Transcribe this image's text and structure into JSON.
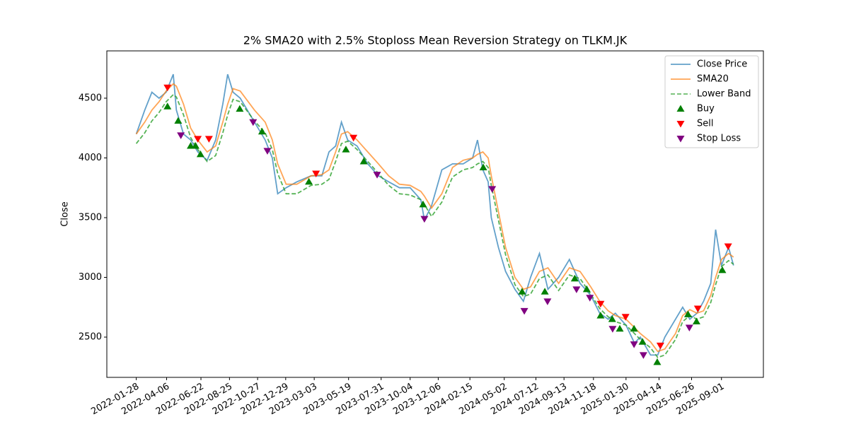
{
  "chart_data": {
    "type": "line",
    "title": "2% SMA20 with 2.5% Stoploss Mean Reversion Strategy on TLKM.JK",
    "ylabel": "Close",
    "legend": "upper right",
    "grid": false,
    "xlim": [
      "2021-11-23",
      "2025-12-04"
    ],
    "xticks": [
      "2022-01-28",
      "2022-04-06",
      "2022-06-22",
      "2022-08-25",
      "2022-10-27",
      "2022-12-29",
      "2023-03-03",
      "2023-05-19",
      "2023-07-31",
      "2023-10-04",
      "2023-12-06",
      "2024-02-15",
      "2024-05-02",
      "2024-07-12",
      "2024-09-13",
      "2024-11-18",
      "2025-01-30",
      "2025-04-14",
      "2025-06-26",
      "2025-09-01"
    ],
    "ylim": [
      2163,
      4896
    ],
    "yticks": [
      2500,
      3000,
      3500,
      4000,
      4500
    ],
    "x": [
      "2022-01-28",
      "2022-02-16",
      "2022-03-04",
      "2022-03-20",
      "2022-04-05",
      "2022-04-21",
      "2022-04-28",
      "2022-05-14",
      "2022-05-30",
      "2022-06-15",
      "2022-07-06",
      "2022-07-25",
      "2022-08-10",
      "2022-08-21",
      "2022-09-02",
      "2022-09-18",
      "2022-10-04",
      "2022-10-20",
      "2022-11-13",
      "2022-11-29",
      "2022-12-11",
      "2022-12-30",
      "2023-01-23",
      "2023-02-24",
      "2023-03-20",
      "2023-04-05",
      "2023-04-20",
      "2023-05-03",
      "2023-05-17",
      "2023-06-07",
      "2023-07-01",
      "2023-07-25",
      "2023-08-17",
      "2023-09-10",
      "2023-10-04",
      "2023-10-28",
      "2023-11-05",
      "2023-11-21",
      "2023-12-14",
      "2024-01-07",
      "2024-01-31",
      "2024-02-21",
      "2024-03-03",
      "2024-03-15",
      "2024-03-27",
      "2024-04-03",
      "2024-04-19",
      "2024-05-05",
      "2024-05-26",
      "2024-06-14",
      "2024-06-30",
      "2024-07-20",
      "2024-08-08",
      "2024-09-01",
      "2024-09-25",
      "2024-10-19",
      "2024-11-12",
      "2024-12-02",
      "2024-12-21",
      "2025-01-06",
      "2025-01-30",
      "2025-02-18",
      "2025-03-03",
      "2025-03-26",
      "2025-04-11",
      "2025-04-27",
      "2025-05-21",
      "2025-06-06",
      "2025-06-22",
      "2025-07-08",
      "2025-07-23",
      "2025-08-08",
      "2025-08-19",
      "2025-09-01",
      "2025-09-17",
      "2025-09-28"
    ],
    "series": [
      {
        "name": "Close Price",
        "type": "line",
        "color": "#1f77b4",
        "dash": false,
        "values": [
          4200,
          4400,
          4550,
          4500,
          4550,
          4700,
          4400,
          4200,
          4150,
          4050,
          3980,
          4150,
          4450,
          4700,
          4550,
          4500,
          4400,
          4300,
          4150,
          4000,
          3700,
          3750,
          3800,
          3850,
          3850,
          4050,
          4100,
          4300,
          4150,
          4100,
          3950,
          3850,
          3800,
          3750,
          3750,
          3650,
          3480,
          3600,
          3900,
          3950,
          3950,
          4000,
          4150,
          3900,
          3800,
          3500,
          3250,
          3050,
          2900,
          2800,
          3000,
          3200,
          2900,
          3000,
          3150,
          2950,
          2850,
          2700,
          2650,
          2700,
          2600,
          2450,
          2500,
          2350,
          2350,
          2500,
          2650,
          2750,
          2650,
          2700,
          2800,
          2950,
          3400,
          3100,
          3250,
          3100
        ]
      },
      {
        "name": "SMA20",
        "type": "line",
        "color": "#ff7f0e",
        "dash": false,
        "values": [
          4200,
          4300,
          4400,
          4470,
          4560,
          4620,
          4600,
          4450,
          4250,
          4150,
          4050,
          4100,
          4300,
          4450,
          4580,
          4560,
          4480,
          4400,
          4300,
          4150,
          3950,
          3780,
          3780,
          3850,
          3860,
          3900,
          4050,
          4200,
          4220,
          4150,
          4050,
          3950,
          3850,
          3780,
          3770,
          3720,
          3680,
          3580,
          3700,
          3920,
          3980,
          4000,
          4030,
          4050,
          4000,
          3850,
          3550,
          3250,
          3000,
          2900,
          2920,
          3050,
          3080,
          2950,
          3080,
          3050,
          2920,
          2800,
          2720,
          2680,
          2650,
          2580,
          2530,
          2460,
          2380,
          2400,
          2530,
          2680,
          2730,
          2700,
          2720,
          2850,
          3000,
          3150,
          3200,
          3170
        ]
      },
      {
        "name": "Lower Band",
        "type": "line",
        "color": "#2ca02c",
        "dash": true,
        "values": [
          4120,
          4210,
          4310,
          4380,
          4470,
          4530,
          4510,
          4360,
          4170,
          4070,
          3970,
          4020,
          4210,
          4360,
          4490,
          4470,
          4390,
          4310,
          4210,
          4070,
          3870,
          3700,
          3700,
          3770,
          3780,
          3820,
          3970,
          4120,
          4140,
          4070,
          3970,
          3870,
          3770,
          3700,
          3690,
          3650,
          3610,
          3510,
          3630,
          3840,
          3900,
          3920,
          3950,
          3970,
          3920,
          3770,
          3480,
          3190,
          2940,
          2840,
          2860,
          2990,
          3020,
          2890,
          3020,
          2990,
          2860,
          2740,
          2670,
          2630,
          2600,
          2530,
          2480,
          2410,
          2330,
          2350,
          2480,
          2630,
          2680,
          2650,
          2670,
          2790,
          2940,
          3090,
          3140,
          3110
        ]
      },
      {
        "name": "Buy",
        "type": "scatter",
        "color": "green",
        "marker": "up",
        "x": [
          "2022-04-08",
          "2022-05-02",
          "2022-05-30",
          "2022-06-10",
          "2022-06-21",
          "2022-09-17",
          "2022-11-06",
          "2023-02-19",
          "2023-05-13",
          "2023-06-22",
          "2023-11-02",
          "2024-03-16",
          "2024-06-11",
          "2024-08-01",
          "2024-10-07",
          "2024-11-03",
          "2024-12-04",
          "2024-12-30",
          "2025-01-16",
          "2025-02-17",
          "2025-03-08",
          "2025-04-10",
          "2025-06-18",
          "2025-07-07",
          "2025-09-03"
        ],
        "values": [
          4430,
          4310,
          4100,
          4100,
          4030,
          4410,
          4220,
          3800,
          4070,
          3970,
          3610,
          3920,
          2880,
          2880,
          2990,
          2900,
          2680,
          2650,
          2570,
          2570,
          2460,
          2290,
          2690,
          2630,
          3060
        ]
      },
      {
        "name": "Sell",
        "type": "scatter",
        "color": "red",
        "marker": "down",
        "x": [
          "2022-04-08",
          "2022-06-15",
          "2022-07-10",
          "2023-03-07",
          "2023-05-30",
          "2024-12-04",
          "2025-01-29",
          "2025-04-17",
          "2025-07-10",
          "2025-09-16"
        ],
        "values": [
          4590,
          4160,
          4160,
          3870,
          4170,
          2780,
          2670,
          2430,
          2740,
          3260
        ]
      },
      {
        "name": "Stop Loss",
        "type": "scatter",
        "color": "purple",
        "marker": "down",
        "x": [
          "2022-05-08",
          "2022-10-17",
          "2022-11-18",
          "2023-07-22",
          "2023-11-05",
          "2024-04-05",
          "2024-06-16",
          "2024-08-07",
          "2024-10-11",
          "2024-11-10",
          "2024-12-31",
          "2025-02-17",
          "2025-03-10",
          "2025-06-21"
        ],
        "values": [
          4190,
          4300,
          4060,
          3860,
          3490,
          3740,
          2720,
          2800,
          2900,
          2830,
          2570,
          2440,
          2350,
          2580
        ]
      }
    ]
  }
}
